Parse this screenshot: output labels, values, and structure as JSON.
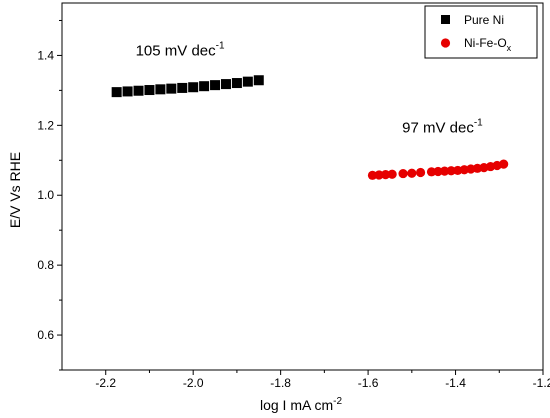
{
  "chart_data": {
    "type": "scatter",
    "xlabel": "log I mA cm",
    "xlabel_sup": "-2",
    "ylabel": "E/V  Vs RHE",
    "xlim": [
      -2.3,
      -1.2
    ],
    "ylim": [
      0.5,
      1.55
    ],
    "x_ticks": [
      -2.2,
      -2.0,
      -1.8,
      -1.6,
      -1.4,
      -1.2
    ],
    "y_ticks": [
      0.6,
      0.8,
      1.0,
      1.2,
      1.4
    ],
    "grid": false,
    "legend_position": "top-right",
    "series": [
      {
        "name": "Pure Ni",
        "marker": "square",
        "color": "#000000",
        "x": [
          -2.175,
          -2.15,
          -2.125,
          -2.1,
          -2.075,
          -2.05,
          -2.025,
          -2.0,
          -1.975,
          -1.95,
          -1.925,
          -1.9,
          -1.875,
          -1.85
        ],
        "y": [
          1.295,
          1.297,
          1.299,
          1.301,
          1.303,
          1.305,
          1.307,
          1.309,
          1.312,
          1.315,
          1.318,
          1.321,
          1.325,
          1.329
        ]
      },
      {
        "name": "Ni-Fe-O",
        "name_sub": "x",
        "marker": "circle",
        "color": "#e60000",
        "x": [
          -1.59,
          -1.575,
          -1.56,
          -1.545,
          -1.52,
          -1.5,
          -1.48,
          -1.455,
          -1.44,
          -1.425,
          -1.41,
          -1.395,
          -1.38,
          -1.365,
          -1.35,
          -1.335,
          -1.32,
          -1.305,
          -1.29
        ],
        "y": [
          1.057,
          1.058,
          1.059,
          1.06,
          1.062,
          1.063,
          1.065,
          1.067,
          1.068,
          1.069,
          1.07,
          1.071,
          1.073,
          1.075,
          1.077,
          1.079,
          1.082,
          1.085,
          1.089
        ]
      }
    ],
    "annotations": [
      {
        "text": "105 mV dec",
        "sup": "-1",
        "x": -2.03,
        "y": 1.4
      },
      {
        "text": "97 mV dec",
        "sup": "-1",
        "x": -1.43,
        "y": 1.18
      }
    ]
  }
}
